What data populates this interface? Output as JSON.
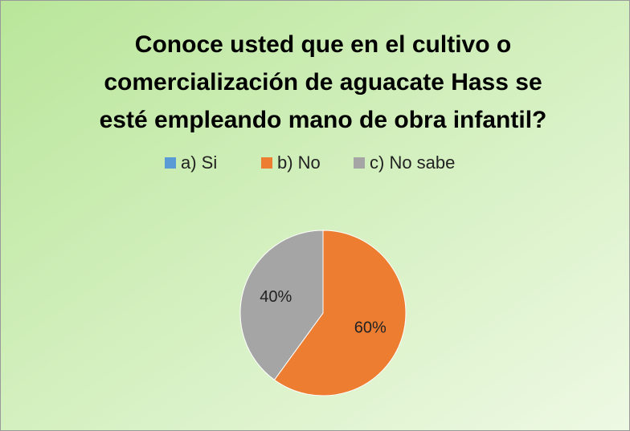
{
  "chart_data": {
    "type": "pie",
    "title": [
      "Conoce usted que en el cultivo o",
      "comercialización de aguacate Hass se",
      "esté empleando mano de obra infantil?"
    ],
    "categories": [
      "a) Si",
      "b) No",
      "c) No sabe"
    ],
    "values": [
      0,
      60,
      40
    ],
    "value_labels": [
      null,
      "60%",
      "40%"
    ],
    "colors": [
      "#5b9bd5",
      "#ed7d31",
      "#a5a5a5"
    ],
    "legend": "top"
  }
}
